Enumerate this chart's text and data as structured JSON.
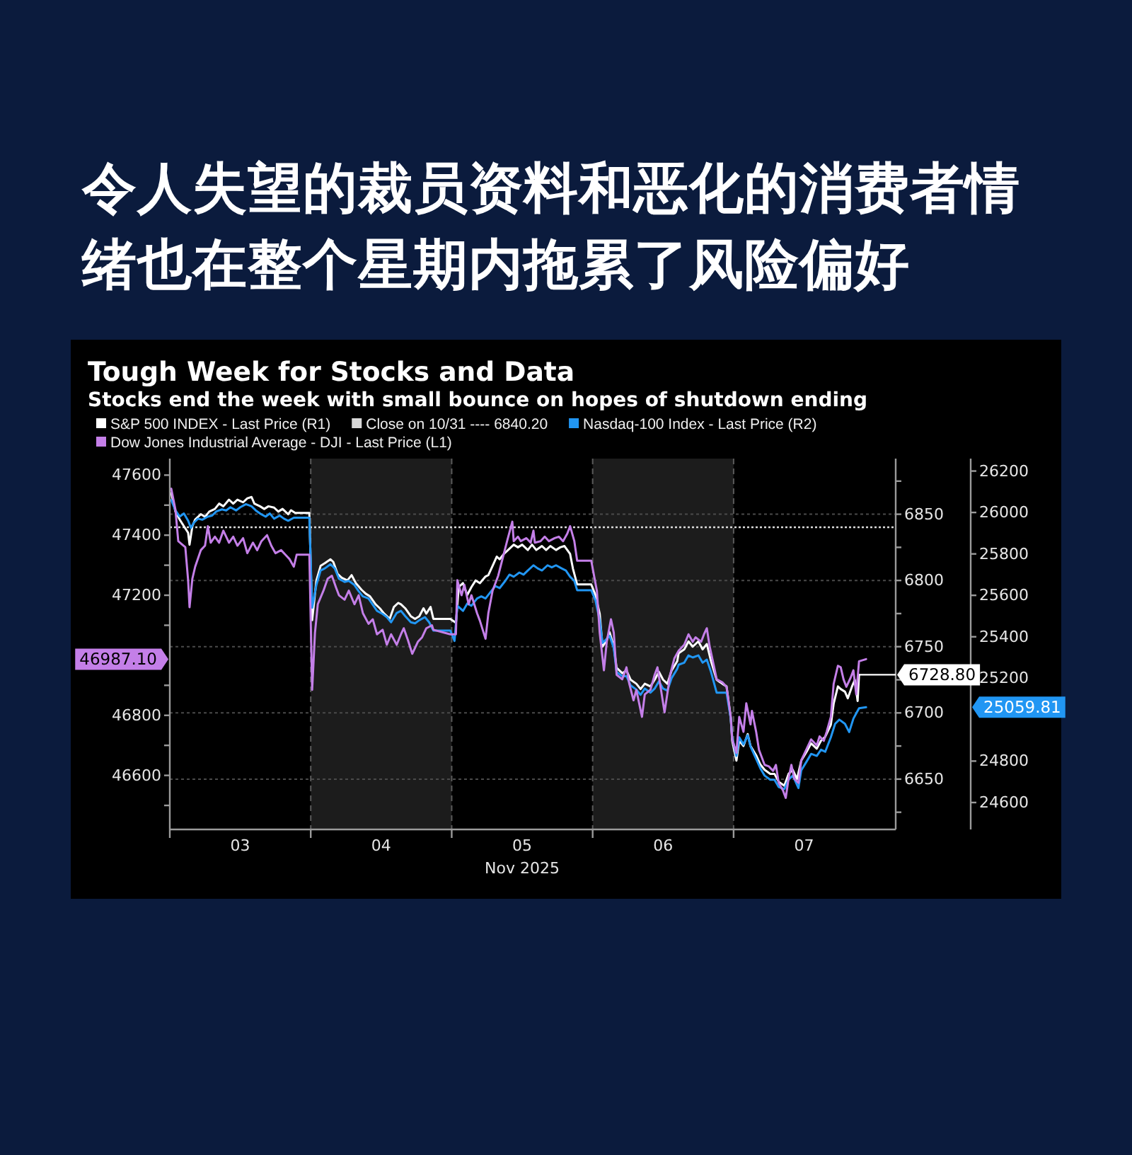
{
  "chart_data": {
    "type": "line",
    "title": "令人失望的裁员资料和恶化的消费者情绪也在整个星期内拖累了风险偏好",
    "subtitle": "Tough Week for Stocks and Data",
    "annotations": [
      "Stocks end the week with small bounce on hopes of shutdown ending"
    ],
    "xlabel": "Nov 2025",
    "xlim": [
      2.5,
      7.65
    ],
    "xticks": [
      {
        "value": 2.5,
        "label": null
      },
      {
        "value": 3,
        "label": "03"
      },
      {
        "value": 3.5,
        "label": null
      },
      {
        "value": 4,
        "label": "04"
      },
      {
        "value": 4.5,
        "label": null
      },
      {
        "value": 5,
        "label": "05"
      },
      {
        "value": 5.5,
        "label": null
      },
      {
        "value": 6,
        "label": "06"
      },
      {
        "value": 6.5,
        "label": null
      },
      {
        "value": 7,
        "label": "07"
      }
    ],
    "ylim": [
      46420,
      47655
    ],
    "yticks": [
      {
        "value": 46500,
        "label": null
      },
      46600,
      {
        "value": 46700,
        "label": null
      },
      46800,
      {
        "value": 46900,
        "label": null
      },
      {
        "value": 46987.1,
        "label": "46987.10"
      },
      {
        "value": 47100,
        "label": null
      },
      47200,
      {
        "value": 47300,
        "label": null
      },
      47400,
      {
        "value": 47500,
        "label": null
      },
      47600
    ],
    "y2lim": [
      6612,
      6892
    ],
    "y2ticks": [
      {
        "value": 6625,
        "label": null
      },
      6650,
      {
        "value": 6675,
        "label": null
      },
      6700,
      {
        "value": 6725,
        "label": null
      },
      6750,
      {
        "value": 6775,
        "label": null
      },
      6800,
      {
        "value": 6825,
        "label": null
      },
      6850,
      {
        "value": 6875,
        "label": null
      }
    ],
    "y3lim": [
      24470,
      26260
    ],
    "y3ticks": [
      24600,
      24800,
      25059.81,
      25200,
      25400,
      25600,
      25800,
      26000,
      26200
    ],
    "grid": true,
    "legend": "top",
    "bands": [
      {
        "axis": "x",
        "from": 3.5,
        "to": 4.5,
        "color": "#1c1c1c"
      },
      {
        "axis": "x",
        "from": 5.5,
        "to": 6.5,
        "color": "#1c1c1c"
      }
    ],
    "ref_lines": [
      {
        "axis": "y2",
        "value": 6840.2,
        "label": "Close on 10/31 ---- 6840.20",
        "color": "#d9d9d9",
        "line_style": "dotted"
      }
    ],
    "series": [
      {
        "name": "S&P 500 INDEX - Last Price (R1)",
        "color": "#ffffff",
        "axis": "y2",
        "x": [
          2.51,
          2.54,
          2.57,
          2.6,
          2.63,
          2.64,
          2.66,
          2.68,
          2.72,
          2.75,
          2.78,
          2.82,
          2.85,
          2.88,
          2.92,
          2.95,
          2.98,
          3.02,
          3.05,
          3.08,
          3.1,
          3.14,
          3.17,
          3.2,
          3.24,
          3.27,
          3.3,
          3.34,
          3.36,
          3.39,
          3.49,
          3.51,
          3.54,
          3.57,
          3.6,
          3.64,
          3.66,
          3.69,
          3.72,
          3.76,
          3.79,
          3.82,
          3.86,
          3.89,
          3.92,
          3.96,
          3.99,
          4.02,
          4.06,
          4.09,
          4.12,
          4.14,
          4.17,
          4.21,
          4.24,
          4.27,
          4.3,
          4.32,
          4.35,
          4.37,
          4.49,
          4.53,
          4.55,
          4.58,
          4.61,
          4.64,
          4.67,
          4.7,
          4.74,
          4.76,
          4.79,
          4.82,
          4.84,
          4.87,
          4.9,
          4.94,
          4.97,
          5.0,
          5.04,
          5.07,
          5.1,
          5.14,
          5.17,
          5.2,
          5.24,
          5.27,
          5.3,
          5.34,
          5.36,
          5.39,
          5.49,
          5.52,
          5.55,
          5.57,
          5.6,
          5.62,
          5.65,
          5.67,
          5.71,
          5.74,
          5.77,
          5.81,
          5.84,
          5.87,
          5.91,
          5.94,
          5.97,
          6.0,
          6.03,
          6.06,
          6.1,
          6.11,
          6.15,
          6.18,
          6.21,
          6.25,
          6.28,
          6.31,
          6.34,
          6.38,
          6.42,
          6.45,
          6.48,
          6.49,
          6.52,
          6.54,
          6.57,
          6.6,
          6.62,
          6.66,
          6.69,
          6.72,
          6.76,
          6.79,
          6.82,
          6.86,
          6.89,
          6.92,
          6.95,
          6.98,
          7.02,
          7.05,
          7.09,
          7.12,
          7.15,
          7.19,
          7.21,
          7.24,
          7.26,
          7.29,
          7.31,
          7.34,
          7.36,
          7.38,
          7.39
        ],
        "values": [
          6866,
          6852,
          6846,
          6841,
          6836,
          6827,
          6841,
          6846,
          6850,
          6848,
          6852,
          6854,
          6858,
          6856,
          6861,
          6858,
          6861,
          6859,
          6862,
          6863,
          6858,
          6856,
          6854,
          6856,
          6855,
          6852,
          6854,
          6850,
          6853,
          6851,
          6851,
          6770,
          6800,
          6811,
          6813,
          6816,
          6814,
          6805,
          6802,
          6800,
          6804,
          6798,
          6793,
          6790,
          6788,
          6782,
          6779,
          6775,
          6771,
          6780,
          6783,
          6782,
          6779,
          6773,
          6771,
          6773,
          6779,
          6775,
          6780,
          6771,
          6771,
          6768,
          6795,
          6798,
          6789,
          6795,
          6800,
          6798,
          6803,
          6804,
          6811,
          6818,
          6816,
          6820,
          6823,
          6827,
          6825,
          6827,
          6823,
          6827,
          6823,
          6826,
          6823,
          6826,
          6823,
          6825,
          6826,
          6820,
          6809,
          6797,
          6797,
          6789,
          6775,
          6750,
          6755,
          6761,
          6750,
          6734,
          6730,
          6732,
          6725,
          6722,
          6718,
          6722,
          6720,
          6725,
          6731,
          6725,
          6722,
          6732,
          6739,
          6745,
          6748,
          6754,
          6750,
          6754,
          6748,
          6752,
          6739,
          6725,
          6722,
          6720,
          6696,
          6679,
          6664,
          6679,
          6675,
          6684,
          6675,
          6668,
          6661,
          6657,
          6654,
          6654,
          6648,
          6645,
          6654,
          6657,
          6650,
          6664,
          6671,
          6677,
          6673,
          6679,
          6682,
          6691,
          6707,
          6720,
          6718,
          6716,
          6711,
          6720,
          6725,
          6709,
          6728.8
        ],
        "value_labels": [
          null,
          null,
          null,
          null,
          null,
          null,
          null,
          null,
          null,
          null,
          null,
          null,
          null,
          null,
          null,
          null,
          null,
          null,
          null,
          null,
          null,
          null,
          null,
          null,
          null,
          null,
          null,
          null,
          null,
          null,
          null,
          null,
          null,
          null,
          null,
          null,
          null,
          null,
          null,
          null,
          null,
          null,
          null,
          null,
          null,
          null,
          null,
          null,
          null,
          null,
          null,
          null,
          null,
          null,
          null,
          null,
          null,
          null,
          null,
          null,
          null,
          null,
          null,
          null,
          null,
          null,
          null,
          null,
          null,
          null,
          null,
          null,
          null,
          null,
          null,
          null,
          null,
          null,
          null,
          null,
          null,
          null,
          null,
          null,
          null,
          null,
          null,
          null,
          null,
          null,
          null,
          null,
          null,
          null,
          null,
          null,
          null,
          null,
          null,
          null,
          null,
          null,
          null,
          null,
          null,
          null,
          null,
          null,
          null,
          null,
          null,
          null,
          null,
          null,
          null,
          null,
          null,
          null,
          null,
          null,
          null,
          null,
          null,
          null,
          null,
          null,
          null,
          null,
          null,
          null,
          null,
          null,
          null,
          null,
          null,
          null,
          null,
          null,
          null,
          null,
          null,
          null,
          null,
          null,
          null,
          null,
          null,
          null,
          null,
          null,
          null,
          null,
          null,
          null,
          "6728.80"
        ]
      },
      {
        "name": "Nasdaq-100 Index - Last Price (R2)",
        "color": "#2196f3",
        "axis": "y3",
        "x": [
          2.51,
          2.54,
          2.57,
          2.6,
          2.63,
          2.65,
          2.67,
          2.7,
          2.73,
          2.77,
          2.8,
          2.83,
          2.87,
          2.9,
          2.93,
          2.97,
          3.0,
          3.04,
          3.08,
          3.11,
          3.14,
          3.18,
          3.21,
          3.24,
          3.28,
          3.31,
          3.34,
          3.38,
          3.4,
          3.49,
          3.51,
          3.54,
          3.57,
          3.6,
          3.64,
          3.67,
          3.7,
          3.74,
          3.77,
          3.81,
          3.84,
          3.87,
          3.91,
          3.94,
          3.97,
          4.01,
          4.04,
          4.07,
          4.11,
          4.14,
          4.17,
          4.21,
          4.24,
          4.27,
          4.31,
          4.34,
          4.37,
          4.49,
          4.52,
          4.54,
          4.58,
          4.61,
          4.64,
          4.68,
          4.71,
          4.74,
          4.78,
          4.81,
          4.84,
          4.88,
          4.91,
          4.94,
          4.98,
          5.01,
          5.04,
          5.08,
          5.11,
          5.14,
          5.18,
          5.21,
          5.24,
          5.28,
          5.31,
          5.34,
          5.37,
          5.39,
          5.49,
          5.52,
          5.55,
          5.57,
          5.6,
          5.62,
          5.65,
          5.67,
          5.71,
          5.74,
          5.77,
          5.81,
          5.84,
          5.87,
          5.91,
          5.94,
          5.97,
          6.0,
          6.03,
          6.06,
          6.1,
          6.11,
          6.15,
          6.18,
          6.21,
          6.25,
          6.28,
          6.31,
          6.34,
          6.38,
          6.41,
          6.45,
          6.48,
          6.49,
          6.52,
          6.54,
          6.57,
          6.6,
          6.62,
          6.66,
          6.69,
          6.72,
          6.76,
          6.79,
          6.82,
          6.86,
          6.89,
          6.92,
          6.96,
          6.98,
          7.02,
          7.05,
          7.09,
          7.12,
          7.15,
          7.19,
          7.22,
          7.25,
          7.29,
          7.32,
          7.35,
          7.37,
          7.39,
          7.44
        ],
        "values": [
          26060,
          26010,
          25980,
          25995,
          25960,
          25925,
          25950,
          25970,
          25965,
          25980,
          25985,
          26005,
          26015,
          26010,
          26025,
          26010,
          26025,
          26040,
          26030,
          26010,
          25995,
          25980,
          25995,
          25970,
          25985,
          25970,
          25960,
          25975,
          25975,
          25975,
          25540,
          25650,
          25720,
          25730,
          25750,
          25730,
          25680,
          25665,
          25670,
          25650,
          25620,
          25595,
          25585,
          25555,
          25525,
          25510,
          25495,
          25470,
          25515,
          25525,
          25500,
          25470,
          25465,
          25480,
          25495,
          25470,
          25430,
          25430,
          25380,
          25550,
          25525,
          25560,
          25550,
          25585,
          25595,
          25585,
          25620,
          25645,
          25635,
          25670,
          25700,
          25690,
          25710,
          25700,
          25720,
          25745,
          25730,
          25720,
          25745,
          25735,
          25745,
          25730,
          25720,
          25690,
          25670,
          25625,
          25625,
          25575,
          25480,
          25370,
          25390,
          25405,
          25345,
          25230,
          25210,
          25210,
          25165,
          25145,
          25120,
          25150,
          25130,
          25150,
          25185,
          25150,
          25140,
          25200,
          25245,
          25265,
          25275,
          25310,
          25300,
          25310,
          25275,
          25290,
          25230,
          25130,
          25130,
          25130,
          25005,
          24915,
          24825,
          24915,
          24880,
          24925,
          24870,
          24810,
          24765,
          24730,
          24710,
          24710,
          24675,
          24665,
          24710,
          24730,
          24670,
          24755,
          24800,
          24835,
          24825,
          24855,
          24845,
          24915,
          24980,
          25000,
          24980,
          24940,
          25005,
          25030,
          25055,
          25059.81
        ]
      },
      {
        "name": "Dow Jones Industrial Average - DJI - Last Price (L1)",
        "color": "#c47fe8",
        "axis": "y",
        "x": [
          2.51,
          2.54,
          2.56,
          2.61,
          2.63,
          2.64,
          2.66,
          2.68,
          2.72,
          2.75,
          2.77,
          2.79,
          2.82,
          2.85,
          2.88,
          2.92,
          2.95,
          2.98,
          3.02,
          3.05,
          3.09,
          3.12,
          3.15,
          3.19,
          3.22,
          3.25,
          3.29,
          3.32,
          3.35,
          3.38,
          3.4,
          3.49,
          3.51,
          3.53,
          3.55,
          3.59,
          3.62,
          3.65,
          3.68,
          3.7,
          3.74,
          3.77,
          3.81,
          3.84,
          3.87,
          3.91,
          3.94,
          3.97,
          4.01,
          4.04,
          4.07,
          4.11,
          4.14,
          4.16,
          4.19,
          4.22,
          4.26,
          4.29,
          4.32,
          4.36,
          4.37,
          4.49,
          4.53,
          4.54,
          4.57,
          4.59,
          4.62,
          4.64,
          4.68,
          4.7,
          4.74,
          4.76,
          4.79,
          4.83,
          4.86,
          4.89,
          4.93,
          4.94,
          4.97,
          4.99,
          5.03,
          5.06,
          5.08,
          5.09,
          5.13,
          5.16,
          5.19,
          5.23,
          5.26,
          5.29,
          5.32,
          5.34,
          5.37,
          5.39,
          5.49,
          5.53,
          5.55,
          5.58,
          5.6,
          5.63,
          5.65,
          5.67,
          5.71,
          5.74,
          5.76,
          5.79,
          5.81,
          5.85,
          5.87,
          5.91,
          5.94,
          5.96,
          5.99,
          6.01,
          6.05,
          6.08,
          6.11,
          6.15,
          6.18,
          6.21,
          6.23,
          6.27,
          6.29,
          6.31,
          6.33,
          6.36,
          6.38,
          6.42,
          6.45,
          6.48,
          6.49,
          6.52,
          6.54,
          6.57,
          6.59,
          6.62,
          6.63,
          6.66,
          6.68,
          6.72,
          6.75,
          6.78,
          6.8,
          6.82,
          6.85,
          6.87,
          6.89,
          6.91,
          6.93,
          6.96,
          6.98,
          7.02,
          7.05,
          7.09,
          7.11,
          7.14,
          7.16,
          7.19,
          7.21,
          7.24,
          7.26,
          7.28,
          7.3,
          7.33,
          7.35,
          7.37,
          7.39,
          7.44
        ],
        "values": [
          47555,
          47485,
          47380,
          47360,
          47250,
          47160,
          47255,
          47295,
          47350,
          47365,
          47430,
          47375,
          47395,
          47375,
          47415,
          47375,
          47395,
          47365,
          47390,
          47340,
          47375,
          47350,
          47380,
          47400,
          47365,
          47340,
          47350,
          47335,
          47320,
          47295,
          47335,
          47335,
          46885,
          47075,
          47170,
          47215,
          47255,
          47265,
          47225,
          47200,
          47185,
          47215,
          47170,
          47200,
          47140,
          47105,
          47120,
          47070,
          47085,
          47035,
          47070,
          47035,
          47070,
          47090,
          47050,
          47005,
          47045,
          47060,
          47090,
          47100,
          47085,
          47070,
          47070,
          47250,
          47200,
          47235,
          47170,
          47200,
          47140,
          47115,
          47055,
          47140,
          47215,
          47265,
          47320,
          47375,
          47445,
          47380,
          47395,
          47380,
          47390,
          47375,
          47415,
          47375,
          47380,
          47395,
          47380,
          47390,
          47395,
          47380,
          47405,
          47430,
          47380,
          47315,
          47315,
          47215,
          47075,
          46950,
          47045,
          47120,
          47075,
          46935,
          46920,
          46960,
          46905,
          46850,
          46885,
          46795,
          46870,
          46885,
          46935,
          46960,
          46870,
          46810,
          46935,
          46990,
          47015,
          47035,
          47070,
          47045,
          47060,
          47045,
          47070,
          47090,
          47030,
          46965,
          46920,
          46910,
          46895,
          46795,
          46720,
          46675,
          46795,
          46745,
          46840,
          46770,
          46815,
          46745,
          46685,
          46635,
          46630,
          46615,
          46635,
          46575,
          46550,
          46525,
          46590,
          46635,
          46590,
          46575,
          46650,
          46690,
          46720,
          46700,
          46730,
          46715,
          46745,
          46795,
          46905,
          46965,
          46960,
          46920,
          46895,
          46925,
          46950,
          46870,
          46980,
          46987.1
        ]
      }
    ]
  }
}
